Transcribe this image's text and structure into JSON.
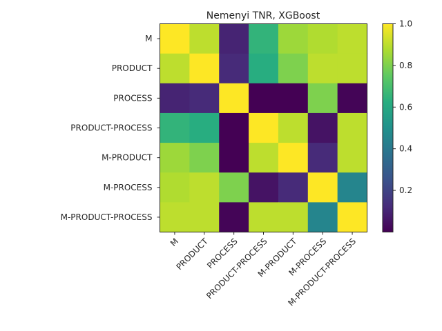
{
  "chart_data": {
    "type": "heatmap",
    "title": "Nemenyi TNR, XGBoost",
    "xlabel": "",
    "ylabel": "",
    "rows": [
      "M",
      "PRODUCT",
      "PROCESS",
      "PRODUCT-PROCESS",
      "M-PRODUCT",
      "M-PROCESS",
      "M-PRODUCT-PROCESS"
    ],
    "columns": [
      "M",
      "PRODUCT",
      "PROCESS",
      "PRODUCT-PROCESS",
      "M-PRODUCT",
      "M-PROCESS",
      "M-PRODUCT-PROCESS"
    ],
    "values": [
      [
        1.0,
        0.9,
        0.1,
        0.65,
        0.85,
        0.88,
        0.9
      ],
      [
        0.9,
        1.0,
        0.12,
        0.62,
        0.8,
        0.9,
        0.9
      ],
      [
        0.1,
        0.12,
        1.0,
        0.001,
        0.001,
        0.8,
        0.01
      ],
      [
        0.65,
        0.62,
        0.001,
        1.0,
        0.9,
        0.05,
        0.9
      ],
      [
        0.85,
        0.8,
        0.001,
        0.9,
        1.0,
        0.12,
        0.9
      ],
      [
        0.88,
        0.9,
        0.8,
        0.05,
        0.12,
        1.0,
        0.45
      ],
      [
        0.9,
        0.9,
        0.01,
        0.9,
        0.9,
        0.45,
        1.0
      ]
    ],
    "colormap": "viridis",
    "colorbar": {
      "range": [
        0.0,
        1.0
      ],
      "ticks": [
        "0.2",
        "0.4",
        "0.6",
        "0.8",
        "1.0"
      ],
      "tick_values": [
        0.2,
        0.4,
        0.6,
        0.8,
        1.0
      ]
    },
    "grid": false
  }
}
